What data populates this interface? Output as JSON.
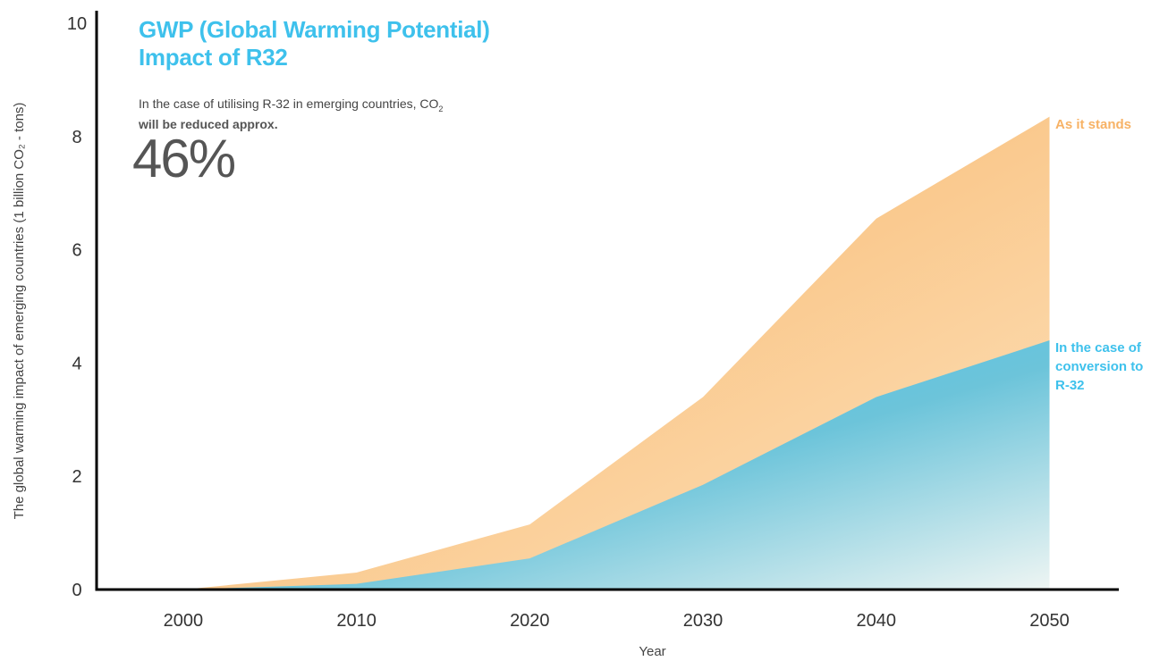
{
  "title": {
    "line1": "GWP (Global Warming Potential)",
    "line2": "Impact of R32"
  },
  "note": {
    "prefix": "In the case of  utilising R-32 in emerging countries, CO",
    "subscript": "2",
    "bold": "will be reduced approx.",
    "value": "46%"
  },
  "colors": {
    "orange": "#f7b265",
    "orange_light": "#fbd8a8",
    "blue": "#44c6f2",
    "blue_light": "#e3eff0",
    "headline_blue": "#3ec1ec",
    "axis": "#000000"
  },
  "chart_data": {
    "type": "area",
    "title": "GWP (Global Warming Potential) Impact of R32",
    "xlabel": "Year",
    "ylabel": "The global warming impact of emerging countries (1 billion CO₂ - tons)",
    "x": [
      2000,
      2010,
      2020,
      2030,
      2040,
      2050
    ],
    "xlim": [
      1995,
      2054
    ],
    "ylim": [
      0,
      10
    ],
    "yticks": [
      0,
      2,
      4,
      6,
      8,
      10
    ],
    "grid": false,
    "series": [
      {
        "name": "As it stands",
        "values": [
          0,
          0.3,
          1.15,
          3.4,
          6.55,
          8.35
        ],
        "color": "#f7b265"
      },
      {
        "name": "In the case of conversion to R-32",
        "values": [
          0,
          0.1,
          0.55,
          1.85,
          3.4,
          4.4
        ],
        "color": "#44c6f2"
      }
    ]
  }
}
